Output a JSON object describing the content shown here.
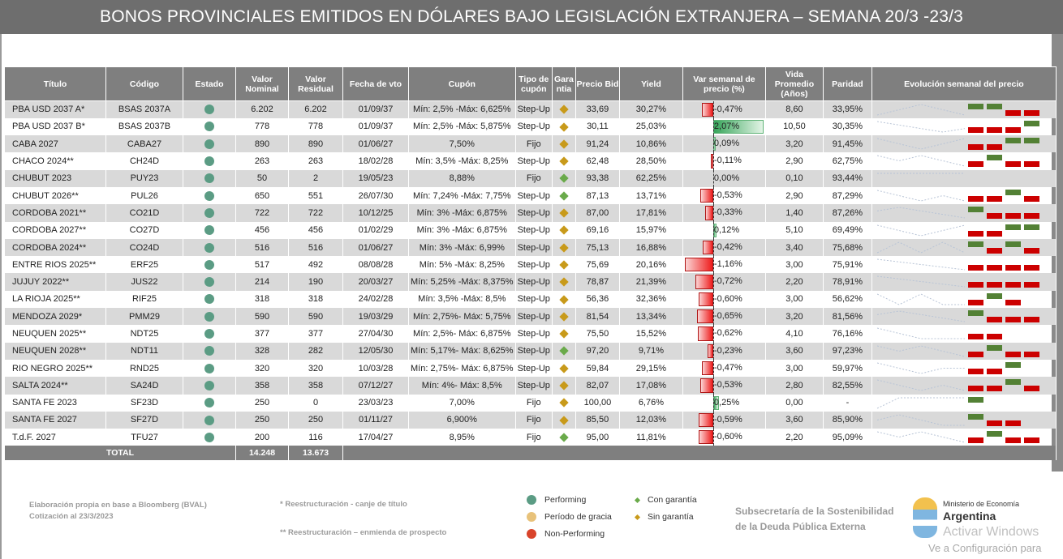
{
  "title": "BONOS PROVINCIALES EMITIDOS EN DÓLARES BAJO LEGISLACIÓN EXTRANJERA – SEMANA 20/3 -23/3",
  "colors": {
    "performing": "#5b9c84",
    "grace": "#e8c27a",
    "nonperforming": "#d9442b",
    "con_garantia": "#6aaa4a",
    "sin_garantia": "#c89a1a",
    "up": "#538135",
    "down": "#cc0000"
  },
  "headers": [
    "Título",
    "Código",
    "Estado",
    "Valor Nominal",
    "Valor Residual",
    "Fecha de vto",
    "Cupón",
    "Tipo de cupón",
    "Gara ntia",
    "Precio Bid",
    "Yield",
    "Var semanal de precio (%)",
    "Vida Promedio (Años)",
    "Paridad",
    "Evolución semanal del precio"
  ],
  "rows": [
    {
      "titulo": "PBA USD 2037 A*",
      "codigo": "BSAS 2037A",
      "estado": "performing",
      "vn": "6.202",
      "vr": "6.202",
      "vto": "01/09/37",
      "cupon": "Mín: 2,5% -Máx: 6,625%",
      "tipo": "Step-Up",
      "garantia": "sin",
      "precio": "33,69",
      "yield": "30,27%",
      "var": -0.47,
      "var_label": "-0,47%",
      "vida": "8,60",
      "paridad": "33,95%",
      "evol": [
        1,
        1,
        -1,
        -1
      ]
    },
    {
      "titulo": "PBA USD 2037 B*",
      "codigo": "BSAS 2037B",
      "estado": "performing",
      "vn": "778",
      "vr": "778",
      "vto": "01/09/37",
      "cupon": "Mín: 2,5% -Máx: 5,875%",
      "tipo": "Step-Up",
      "garantia": "sin",
      "precio": "30,11",
      "yield": "25,03%",
      "var": 2.07,
      "var_label": "2,07%",
      "vida": "10,50",
      "paridad": "30,35%",
      "evol": [
        -1,
        -1,
        -1,
        1
      ]
    },
    {
      "titulo": "CABA 2027",
      "codigo": "CABA27",
      "estado": "performing",
      "vn": "890",
      "vr": "890",
      "vto": "01/06/27",
      "cupon": "7,50%",
      "tipo": "Fijo",
      "garantia": "sin",
      "precio": "91,24",
      "yield": "10,86%",
      "var": 0.09,
      "var_label": "0,09%",
      "vida": "3,20",
      "paridad": "91,45%",
      "evol": [
        -1,
        -1,
        1,
        1
      ]
    },
    {
      "titulo": "CHACO 2024**",
      "codigo": "CH24D",
      "estado": "performing",
      "vn": "263",
      "vr": "263",
      "vto": "18/02/28",
      "cupon": "Mín: 3,5% -Máx: 8,25%",
      "tipo": "Step-Up",
      "garantia": "sin",
      "precio": "62,48",
      "yield": "28,50%",
      "var": -0.11,
      "var_label": "-0,11%",
      "vida": "2,90",
      "paridad": "62,75%",
      "evol": [
        -1,
        1,
        -1,
        -1
      ]
    },
    {
      "titulo": "CHUBUT 2023",
      "codigo": "PUY23",
      "estado": "performing",
      "vn": "50",
      "vr": "2",
      "vto": "19/05/23",
      "cupon": "8,88%",
      "tipo": "Fijo",
      "garantia": "con",
      "precio": "93,38",
      "yield": "62,25%",
      "var": 0,
      "var_label": "0,00%",
      "vida": "0,10",
      "paridad": "93,44%",
      "evol": [
        0,
        0,
        0,
        0
      ]
    },
    {
      "titulo": "CHUBUT 2026**",
      "codigo": "PUL26",
      "estado": "performing",
      "vn": "650",
      "vr": "551",
      "vto": "26/07/30",
      "cupon": "Mín: 7,24% -Máx: 7,75%",
      "tipo": "Step-Up",
      "garantia": "con",
      "precio": "87,13",
      "yield": "13,71%",
      "var": -0.53,
      "var_label": "-0,53%",
      "vida": "2,90",
      "paridad": "87,29%",
      "evol": [
        -1,
        -1,
        1,
        -1
      ]
    },
    {
      "titulo": "CORDOBA 2021**",
      "codigo": "CO21D",
      "estado": "performing",
      "vn": "722",
      "vr": "722",
      "vto": "10/12/25",
      "cupon": "Mín: 3% -Máx: 6,875%",
      "tipo": "Step-Up",
      "garantia": "sin",
      "precio": "87,00",
      "yield": "17,81%",
      "var": -0.33,
      "var_label": "-0,33%",
      "vida": "1,40",
      "paridad": "87,26%",
      "evol": [
        1,
        -1,
        -1,
        -1
      ]
    },
    {
      "titulo": "CORDOBA 2027**",
      "codigo": "CO27D",
      "estado": "performing",
      "vn": "456",
      "vr": "456",
      "vto": "01/02/29",
      "cupon": "Mín: 3% -Máx: 6,875%",
      "tipo": "Step-Up",
      "garantia": "sin",
      "precio": "69,16",
      "yield": "15,97%",
      "var": 0.12,
      "var_label": "0,12%",
      "vida": "5,10",
      "paridad": "69,49%",
      "evol": [
        -1,
        -1,
        1,
        1
      ]
    },
    {
      "titulo": "CORDOBA 2024**",
      "codigo": "CO24D",
      "estado": "performing",
      "vn": "516",
      "vr": "516",
      "vto": "01/06/27",
      "cupon": "Mín: 3% -Máx: 6,99%",
      "tipo": "Step-Up",
      "garantia": "sin",
      "precio": "75,13",
      "yield": "16,88%",
      "var": -0.42,
      "var_label": "-0,42%",
      "vida": "3,40",
      "paridad": "75,68%",
      "evol": [
        1,
        -1,
        1,
        -1
      ]
    },
    {
      "titulo": "ENTRE RIOS 2025**",
      "codigo": "ERF25",
      "estado": "performing",
      "vn": "517",
      "vr": "492",
      "vto": "08/08/28",
      "cupon": "Mín: 5% -Máx: 8,25%",
      "tipo": "Step-Up",
      "garantia": "sin",
      "precio": "75,69",
      "yield": "20,16%",
      "var": -1.16,
      "var_label": "-1,16%",
      "vida": "3,00",
      "paridad": "75,91%",
      "evol": [
        -1,
        -1,
        -1,
        -1
      ]
    },
    {
      "titulo": "JUJUY 2022**",
      "codigo": "JUS22",
      "estado": "performing",
      "vn": "214",
      "vr": "190",
      "vto": "20/03/27",
      "cupon": "Mín: 5,25% -Máx: 8,375%",
      "tipo": "Step-Up",
      "garantia": "sin",
      "precio": "78,87",
      "yield": "21,39%",
      "var": -0.72,
      "var_label": "-0,72%",
      "vida": "2,20",
      "paridad": "78,91%",
      "evol": [
        -1,
        -1,
        -1,
        -1
      ]
    },
    {
      "titulo": "LA RIOJA 2025**",
      "codigo": "RIF25",
      "estado": "performing",
      "vn": "318",
      "vr": "318",
      "vto": "24/02/28",
      "cupon": "Mín: 3,5% -Máx: 8,5%",
      "tipo": "Step-Up",
      "garantia": "sin",
      "precio": "56,36",
      "yield": "32,36%",
      "var": -0.6,
      "var_label": "-0,60%",
      "vida": "3,00",
      "paridad": "56,62%",
      "evol": [
        -1,
        1,
        -1,
        0
      ]
    },
    {
      "titulo": "MENDOZA 2029*",
      "codigo": "PMM29",
      "estado": "performing",
      "vn": "590",
      "vr": "590",
      "vto": "19/03/29",
      "cupon": "Mín: 2,75%- Máx: 5,75%",
      "tipo": "Step-Up",
      "garantia": "sin",
      "precio": "81,54",
      "yield": "13,34%",
      "var": -0.65,
      "var_label": "-0,65%",
      "vida": "3,20",
      "paridad": "81,56%",
      "evol": [
        1,
        -1,
        -1,
        -1
      ]
    },
    {
      "titulo": "NEUQUEN 2025**",
      "codigo": "NDT25",
      "estado": "performing",
      "vn": "377",
      "vr": "377",
      "vto": "27/04/30",
      "cupon": "Mín: 2,5%- Máx: 6,875%",
      "tipo": "Step-Up",
      "garantia": "sin",
      "precio": "75,50",
      "yield": "15,52%",
      "var": -0.62,
      "var_label": "-0,62%",
      "vida": "4,10",
      "paridad": "76,16%",
      "evol": [
        -1,
        -1,
        0,
        0
      ]
    },
    {
      "titulo": "NEUQUEN 2028**",
      "codigo": "NDT11",
      "estado": "performing",
      "vn": "328",
      "vr": "282",
      "vto": "12/05/30",
      "cupon": "Mín: 5,17%- Máx: 8,625%",
      "tipo": "Step-Up",
      "garantia": "con",
      "precio": "97,20",
      "yield": "9,71%",
      "var": -0.23,
      "var_label": "-0,23%",
      "vida": "3,60",
      "paridad": "97,23%",
      "evol": [
        -1,
        1,
        -1,
        -1
      ]
    },
    {
      "titulo": "RIO NEGRO 2025**",
      "codigo": "RND25",
      "estado": "performing",
      "vn": "320",
      "vr": "320",
      "vto": "10/03/28",
      "cupon": "Mín: 2,75%- Máx: 6,875%",
      "tipo": "Step-Up",
      "garantia": "sin",
      "precio": "59,84",
      "yield": "29,15%",
      "var": -0.47,
      "var_label": "-0,47%",
      "vida": "3,00",
      "paridad": "59,97%",
      "evol": [
        -1,
        -1,
        1,
        0
      ]
    },
    {
      "titulo": "SALTA 2024**",
      "codigo": "SA24D",
      "estado": "performing",
      "vn": "358",
      "vr": "358",
      "vto": "07/12/27",
      "cupon": "Mín: 4%- Máx: 8,5%",
      "tipo": "Step-Up",
      "garantia": "sin",
      "precio": "82,07",
      "yield": "17,08%",
      "var": -0.53,
      "var_label": "-0,53%",
      "vida": "2,80",
      "paridad": "82,55%",
      "evol": [
        -1,
        -1,
        1,
        -1
      ]
    },
    {
      "titulo": "SANTA FE 2023",
      "codigo": "SF23D",
      "estado": "performing",
      "vn": "250",
      "vr": "0",
      "vto": "23/03/23",
      "cupon": "7,00%",
      "tipo": "Fijo",
      "garantia": "sin",
      "precio": "100,00",
      "yield": "6,76%",
      "var": 0.25,
      "var_label": "0,25%",
      "vida": "0,00",
      "paridad": "-",
      "evol": [
        1,
        0,
        0,
        0
      ]
    },
    {
      "titulo": "SANTA FE 2027",
      "codigo": "SF27D",
      "estado": "performing",
      "vn": "250",
      "vr": "250",
      "vto": "01/11/27",
      "cupon": "6,900%",
      "tipo": "Fijo",
      "garantia": "sin",
      "precio": "85,50",
      "yield": "12,03%",
      "var": -0.59,
      "var_label": "-0,59%",
      "vida": "3,60",
      "paridad": "85,90%",
      "evol": [
        1,
        -1,
        -1,
        0
      ]
    },
    {
      "titulo": "T.d.F. 2027",
      "codigo": "TFU27",
      "estado": "performing",
      "vn": "200",
      "vr": "116",
      "vto": "17/04/27",
      "cupon": "8,95%",
      "tipo": "Fijo",
      "garantia": "con",
      "precio": "95,00",
      "yield": "11,81%",
      "var": -0.6,
      "var_label": "-0,60%",
      "vida": "2,20",
      "paridad": "95,09%",
      "evol": [
        -1,
        1,
        -1,
        -1
      ]
    }
  ],
  "total": {
    "label": "TOTAL",
    "vn": "14.248",
    "vr": "13.673"
  },
  "footer": {
    "source": "Elaboración propia en base a Bloomberg (BVAL)",
    "quote": "Cotización al 23/3/2023",
    "note1": "*   Reestructuración - canje de título",
    "note2": "**  Reestructuración – enmienda de prospecto",
    "legend": {
      "performing": "Performing",
      "grace": "Período de gracia",
      "nonperforming": "Non-Performing",
      "con": "Con garantía",
      "sin": "Sin garantía"
    },
    "subsecretaria": [
      "Subsecretaría de la Sostenibilidad",
      "de la Deuda Pública Externa"
    ],
    "ministerio": "Ministerio de Economía",
    "argentina": "Argentina",
    "watermark1": "Activar Windows",
    "watermark2": "Ve a Configuración para"
  }
}
